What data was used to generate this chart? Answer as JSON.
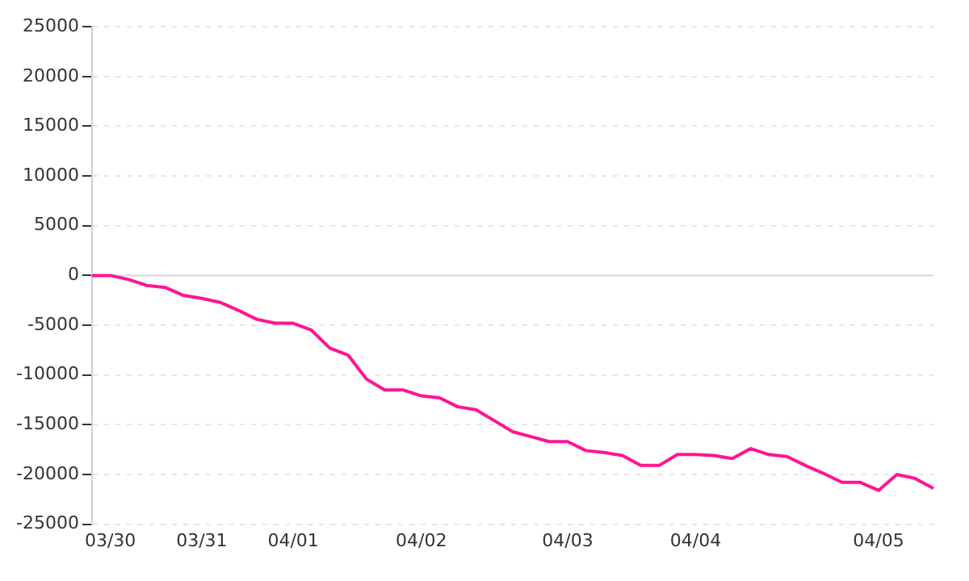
{
  "chart_data": {
    "type": "line",
    "categories": [
      null,
      "03/30",
      null,
      null,
      null,
      null,
      "03/31",
      null,
      null,
      null,
      null,
      "04/01",
      null,
      null,
      null,
      null,
      null,
      null,
      "04/02",
      null,
      null,
      null,
      null,
      null,
      null,
      null,
      "04/03",
      null,
      null,
      null,
      null,
      null,
      null,
      "04/04",
      null,
      null,
      null,
      null,
      null,
      null,
      null,
      null,
      null,
      "04/05",
      null,
      null,
      null
    ],
    "series": [
      {
        "color": "#ff1493",
        "values": [
          0,
          0,
          -400,
          -1000,
          -1200,
          -2000,
          -2300,
          -2700,
          -3500,
          -4400,
          -4800,
          -4800,
          -5500,
          -7300,
          -8000,
          -10400,
          -11500,
          -11500,
          -12100,
          -12300,
          -13200,
          -13500,
          -14600,
          -15700,
          -16200,
          -16700,
          -16700,
          -17600,
          -17800,
          -18100,
          -19100,
          -19100,
          -18000,
          -18000,
          -18100,
          -18400,
          -17400,
          -18000,
          -18200,
          -19100,
          -19900,
          -20800,
          -20800,
          -21600,
          -20000,
          -20400,
          -21400
        ]
      }
    ],
    "ylim": [
      -25000,
      25000
    ],
    "yticks": [
      -25000,
      -20000,
      -15000,
      -10000,
      -5000,
      0,
      5000,
      10000,
      15000,
      20000,
      25000
    ],
    "ref_lines": [
      {
        "axis": "y",
        "value": 0,
        "color": "#d8d8d8"
      }
    ],
    "grid": "y",
    "legend": false,
    "marker": "none",
    "line_style": "solid"
  }
}
